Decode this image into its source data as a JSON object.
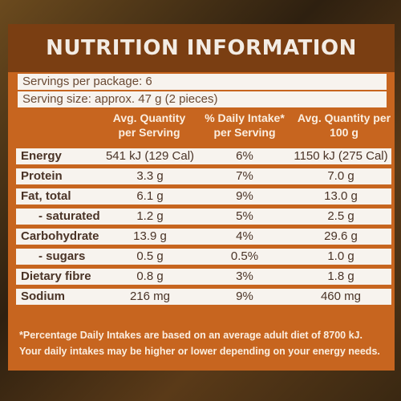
{
  "panel": {
    "title": "NUTRITION INFORMATION",
    "servings_per_package": "Servings per package: 6",
    "serving_size": "Serving size: approx. 47 g (2 pieces)"
  },
  "columns": {
    "per_serving": "Avg. Quantity per Serving",
    "daily_intake": "% Daily Intake* per Serving",
    "per_100g": "Avg. Quantity per 100 g"
  },
  "rows": [
    {
      "name": "Energy",
      "per_serving": "541 kJ (129 Cal)",
      "daily_intake": "6%",
      "per_100g": "1150 kJ (275 Cal)"
    },
    {
      "name": "Protein",
      "per_serving": "3.3 g",
      "daily_intake": "7%",
      "per_100g": "7.0 g"
    },
    {
      "name": "Fat, total",
      "per_serving": "6.1 g",
      "daily_intake": "9%",
      "per_100g": "13.0 g"
    },
    {
      "name": "- saturated",
      "per_serving": "1.2 g",
      "daily_intake": "5%",
      "per_100g": "2.5 g"
    },
    {
      "name": "Carbohydrate",
      "per_serving": "13.9 g",
      "daily_intake": "4%",
      "per_100g": "29.6 g"
    },
    {
      "name": "- sugars",
      "per_serving": "0.5 g",
      "daily_intake": "0.5%",
      "per_100g": "1.0 g"
    },
    {
      "name": "Dietary fibre",
      "per_serving": "0.8 g",
      "daily_intake": "3%",
      "per_100g": "1.8 g"
    },
    {
      "name": "Sodium",
      "per_serving": "216 mg",
      "daily_intake": "9%",
      "per_100g": "460 mg"
    }
  ],
  "footnote": "*Percentage Daily Intakes are based on an average adult diet of 8700 kJ. Your daily intakes may be higher or lower depending on your energy needs.",
  "colors": {
    "panel_orange": "#c7651f",
    "header_brown": "#7a3e12",
    "row_white": "#f7f3ee"
  }
}
